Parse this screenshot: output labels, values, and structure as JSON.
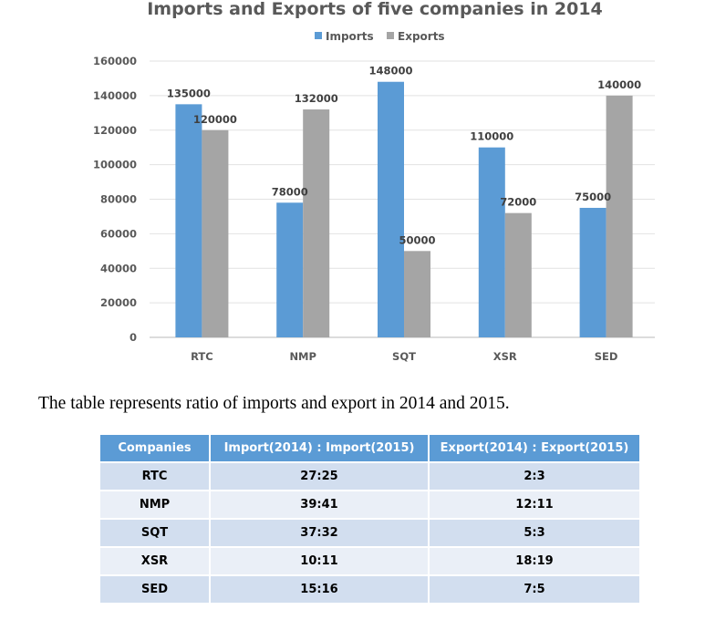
{
  "chart_data": {
    "type": "bar",
    "title": "Imports and Exports of five companies in 2014",
    "categories": [
      "RTC",
      "NMP",
      "SQT",
      "XSR",
      "SED"
    ],
    "series": [
      {
        "name": "Imports",
        "color": "#5b9bd5",
        "values": [
          135000,
          78000,
          148000,
          110000,
          75000
        ]
      },
      {
        "name": "Exports",
        "color": "#a5a5a5",
        "values": [
          120000,
          132000,
          50000,
          72000,
          140000
        ]
      }
    ],
    "xlabel": "",
    "ylabel": "",
    "ylim": [
      0,
      160000
    ],
    "yticks": [
      0,
      20000,
      40000,
      60000,
      80000,
      100000,
      120000,
      140000,
      160000
    ],
    "grid": true,
    "legend": "top-center",
    "data_labels": true
  },
  "description": "The table represents ratio of imports and export in 2014 and 2015.",
  "table": {
    "headers": [
      "Companies",
      "Import(2014) : Import(2015)",
      "Export(2014) : Export(2015)"
    ],
    "rows": [
      [
        "RTC",
        "27:25",
        "2:3"
      ],
      [
        "NMP",
        "39:41",
        "12:11"
      ],
      [
        "SQT",
        "37:32",
        "5:3"
      ],
      [
        "XSR",
        "10:11",
        "18:19"
      ],
      [
        "SED",
        "15:16",
        "7:5"
      ]
    ]
  }
}
